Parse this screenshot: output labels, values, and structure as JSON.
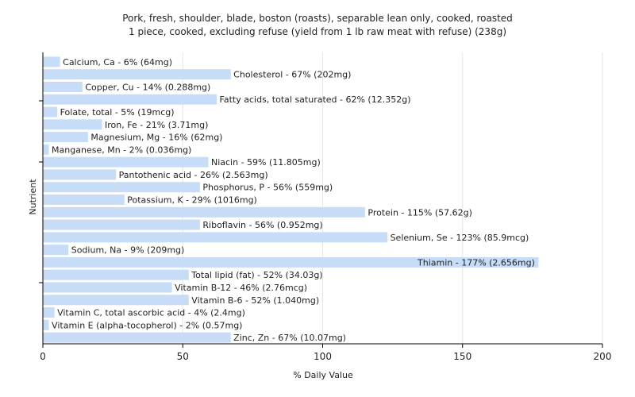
{
  "chart_data": {
    "type": "bar",
    "orientation": "horizontal",
    "title_line1": "Pork, fresh, shoulder, blade, boston (roasts), separable lean only, cooked, roasted",
    "title_line2": "1 piece, cooked, excluding refuse (yield from 1 lb raw meat with refuse) (238g)",
    "xlabel": "% Daily Value",
    "ylabel": "Nutrient",
    "xlim": [
      0,
      200
    ],
    "xticks": [
      0,
      50,
      100,
      150,
      200
    ],
    "grid": "vertical",
    "bar_color": "#c6dcf7",
    "bars": [
      {
        "label": "Calcium, Ca - 6% (64mg)",
        "value": 6
      },
      {
        "label": "Cholesterol - 67% (202mg)",
        "value": 67
      },
      {
        "label": "Copper, Cu - 14% (0.288mg)",
        "value": 14
      },
      {
        "label": "Fatty acids, total saturated - 62% (12.352g)",
        "value": 62
      },
      {
        "label": "Folate, total - 5% (19mcg)",
        "value": 5
      },
      {
        "label": "Iron, Fe - 21% (3.71mg)",
        "value": 21
      },
      {
        "label": "Magnesium, Mg - 16% (62mg)",
        "value": 16
      },
      {
        "label": "Manganese, Mn - 2% (0.036mg)",
        "value": 2
      },
      {
        "label": "Niacin - 59% (11.805mg)",
        "value": 59
      },
      {
        "label": "Pantothenic acid - 26% (2.563mg)",
        "value": 26
      },
      {
        "label": "Phosphorus, P - 56% (559mg)",
        "value": 56
      },
      {
        "label": "Potassium, K - 29% (1016mg)",
        "value": 29
      },
      {
        "label": "Protein - 115% (57.62g)",
        "value": 115
      },
      {
        "label": "Riboflavin - 56% (0.952mg)",
        "value": 56
      },
      {
        "label": "Selenium, Se - 123% (85.9mcg)",
        "value": 123
      },
      {
        "label": "Sodium, Na - 9% (209mg)",
        "value": 9
      },
      {
        "label": "Thiamin - 177% (2.656mg)",
        "value": 177
      },
      {
        "label": "Total lipid (fat) - 52% (34.03g)",
        "value": 52
      },
      {
        "label": "Vitamin B-12 - 46% (2.76mcg)",
        "value": 46
      },
      {
        "label": "Vitamin B-6 - 52% (1.040mg)",
        "value": 52
      },
      {
        "label": "Vitamin C, total ascorbic acid - 4% (2.4mg)",
        "value": 4
      },
      {
        "label": "Vitamin E (alpha-tocopherol) - 2% (0.57mg)",
        "value": 2
      },
      {
        "label": "Zinc, Zn - 67% (10.07mg)",
        "value": 67
      }
    ]
  }
}
